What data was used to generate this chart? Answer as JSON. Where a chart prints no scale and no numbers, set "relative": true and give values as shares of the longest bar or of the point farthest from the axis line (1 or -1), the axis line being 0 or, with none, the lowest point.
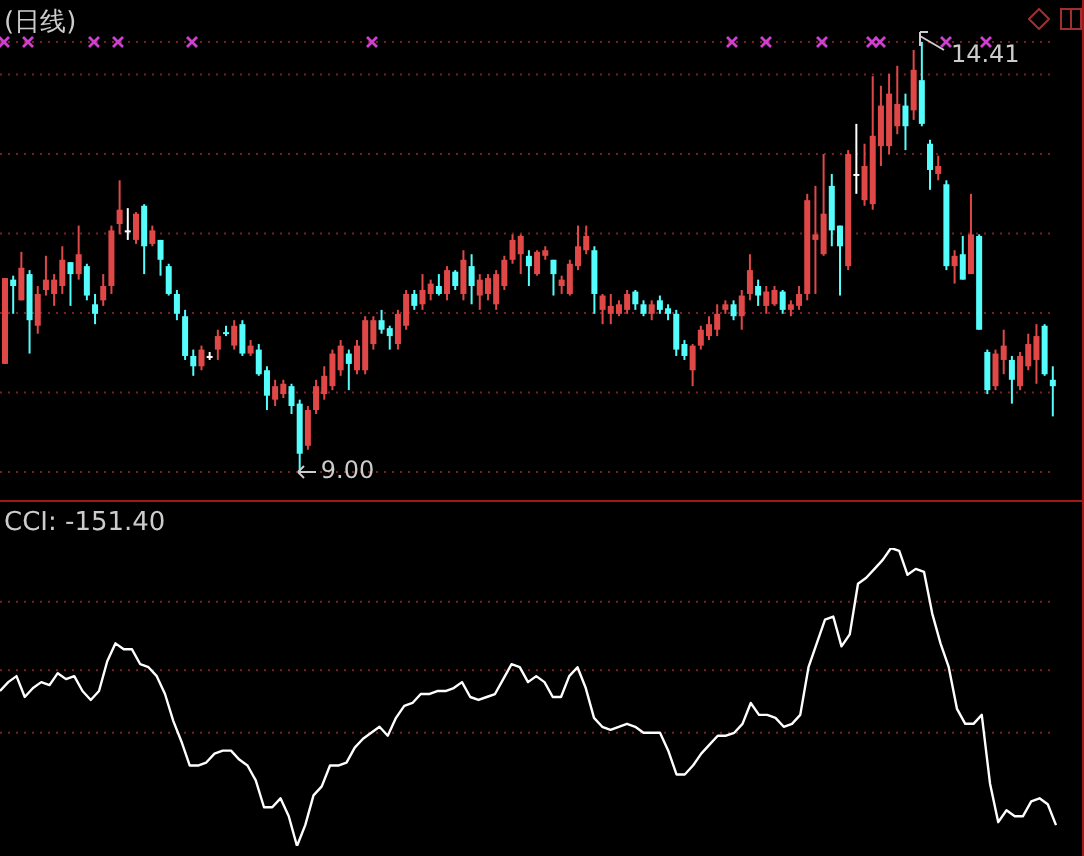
{
  "chart_data": [
    {
      "type": "candlestick",
      "title": "(日线)",
      "grid": "y",
      "categories": [
        null,
        null,
        null,
        null,
        null,
        null,
        null,
        null,
        null,
        null,
        null,
        null,
        null,
        null,
        null,
        null,
        null,
        null,
        null,
        null,
        null,
        null,
        null,
        null,
        null,
        null,
        null,
        null,
        null,
        null,
        null,
        null,
        null,
        null,
        null,
        null,
        null,
        null,
        null,
        null,
        null,
        null,
        null,
        null,
        null,
        null,
        null,
        null,
        null,
        null,
        null,
        null,
        null,
        null,
        null,
        null,
        null,
        null,
        null,
        null,
        null,
        null,
        null,
        null,
        null,
        null,
        null,
        null,
        null,
        null,
        null,
        null,
        null,
        null,
        null,
        null,
        null,
        null,
        null,
        null,
        null,
        null,
        null,
        null,
        null,
        null,
        null,
        null,
        null,
        null,
        null,
        null,
        null,
        null,
        null,
        null,
        null,
        null,
        null,
        null,
        null,
        null,
        null,
        null,
        null,
        null,
        null,
        null,
        null,
        null,
        null,
        null,
        null,
        null,
        null,
        null,
        null,
        null,
        null,
        null,
        null,
        null,
        null,
        null,
        null,
        null,
        null,
        null,
        null
      ],
      "yticks": [
        {
          "value": 9,
          "label": null
        },
        {
          "value": 10,
          "label": null
        },
        {
          "value": 11,
          "label": null
        },
        {
          "value": 12,
          "label": null
        },
        {
          "value": 13,
          "label": null
        },
        {
          "value": 14,
          "label": null
        }
      ],
      "annotations": [
        "14.41",
        "9.00"
      ],
      "ohlc": [
        [
          10.36,
          11.44,
          10.36,
          11.44
        ],
        [
          11.42,
          11.47,
          10.99,
          11.34
        ],
        [
          11.16,
          11.77,
          11.16,
          11.57
        ],
        [
          11.49,
          11.54,
          10.49,
          10.91
        ],
        [
          10.84,
          11.34,
          10.74,
          11.24
        ],
        [
          11.29,
          11.72,
          11.22,
          11.42
        ],
        [
          11.24,
          11.49,
          11.09,
          11.42
        ],
        [
          11.34,
          11.84,
          11.24,
          11.67
        ],
        [
          11.64,
          11.64,
          11.09,
          11.49
        ],
        [
          11.49,
          12.1,
          11.42,
          11.74
        ],
        [
          11.59,
          11.62,
          11.16,
          11.22
        ],
        [
          11.11,
          11.24,
          10.86,
          10.99
        ],
        [
          11.16,
          11.49,
          11.09,
          11.34
        ],
        [
          11.34,
          12.1,
          11.24,
          12.04
        ],
        [
          12.12,
          12.67,
          11.99,
          12.3
        ],
        [
          12.04,
          12.32,
          11.92,
          12.04
        ],
        [
          11.92,
          12.27,
          11.87,
          12.25
        ],
        [
          12.35,
          12.37,
          11.49,
          11.84
        ],
        [
          11.87,
          12.1,
          11.84,
          12.04
        ],
        [
          11.92,
          11.92,
          11.47,
          11.67
        ],
        [
          11.59,
          11.62,
          11.22,
          11.24
        ],
        [
          11.24,
          11.29,
          10.91,
          10.99
        ],
        [
          10.96,
          11.04,
          10.41,
          10.46
        ],
        [
          10.46,
          10.54,
          10.21,
          10.33
        ],
        [
          10.33,
          10.59,
          10.28,
          10.54
        ],
        [
          10.46,
          10.51,
          10.41,
          10.46
        ],
        [
          10.54,
          10.79,
          10.41,
          10.71
        ],
        [
          10.76,
          10.84,
          10.71,
          10.74
        ],
        [
          10.59,
          10.91,
          10.54,
          10.84
        ],
        [
          10.86,
          10.91,
          10.46,
          10.49
        ],
        [
          10.49,
          10.66,
          10.46,
          10.59
        ],
        [
          10.54,
          10.61,
          10.21,
          10.23
        ],
        [
          10.28,
          10.33,
          9.78,
          9.96
        ],
        [
          9.91,
          10.16,
          9.83,
          10.08
        ],
        [
          9.98,
          10.16,
          9.93,
          10.11
        ],
        [
          10.08,
          10.11,
          9.73,
          9.83
        ],
        [
          9.86,
          9.91,
          9.0,
          9.23
        ],
        [
          9.33,
          9.83,
          9.28,
          9.78
        ],
        [
          9.78,
          10.16,
          9.73,
          10.08
        ],
        [
          9.98,
          10.33,
          9.91,
          10.21
        ],
        [
          10.08,
          10.54,
          10.03,
          10.49
        ],
        [
          10.28,
          10.66,
          10.21,
          10.59
        ],
        [
          10.49,
          10.54,
          10.03,
          10.36
        ],
        [
          10.28,
          10.66,
          10.23,
          10.59
        ],
        [
          10.28,
          10.96,
          10.23,
          10.91
        ],
        [
          10.61,
          10.96,
          10.54,
          10.91
        ],
        [
          10.91,
          11.04,
          10.74,
          10.79
        ],
        [
          10.81,
          10.84,
          10.54,
          10.71
        ],
        [
          10.61,
          11.04,
          10.54,
          10.99
        ],
        [
          10.84,
          11.29,
          10.79,
          11.24
        ],
        [
          11.24,
          11.29,
          11.04,
          11.09
        ],
        [
          11.11,
          11.49,
          11.04,
          11.29
        ],
        [
          11.24,
          11.42,
          11.16,
          11.37
        ],
        [
          11.34,
          11.49,
          11.22,
          11.24
        ],
        [
          11.24,
          11.59,
          11.16,
          11.54
        ],
        [
          11.52,
          11.54,
          11.29,
          11.34
        ],
        [
          11.24,
          11.79,
          11.16,
          11.67
        ],
        [
          11.59,
          11.74,
          11.11,
          11.34
        ],
        [
          11.22,
          11.49,
          11.04,
          11.42
        ],
        [
          11.24,
          11.49,
          11.16,
          11.44
        ],
        [
          11.11,
          11.54,
          11.04,
          11.49
        ],
        [
          11.34,
          11.72,
          11.29,
          11.67
        ],
        [
          11.67,
          11.99,
          11.62,
          11.92
        ],
        [
          11.74,
          11.99,
          11.49,
          11.97
        ],
        [
          11.72,
          11.79,
          11.34,
          11.59
        ],
        [
          11.49,
          11.79,
          11.47,
          11.77
        ],
        [
          11.72,
          11.84,
          11.67,
          11.79
        ],
        [
          11.67,
          11.67,
          11.22,
          11.49
        ],
        [
          11.34,
          11.47,
          11.24,
          11.42
        ],
        [
          11.24,
          11.67,
          11.22,
          11.62
        ],
        [
          11.59,
          12.1,
          11.54,
          11.84
        ],
        [
          11.79,
          12.1,
          11.74,
          11.97
        ],
        [
          11.79,
          11.84,
          10.99,
          11.24
        ],
        [
          11.04,
          11.24,
          10.86,
          11.22
        ],
        [
          10.99,
          11.24,
          10.86,
          11.09
        ],
        [
          10.99,
          11.16,
          10.96,
          11.11
        ],
        [
          11.04,
          11.29,
          10.99,
          11.24
        ],
        [
          11.27,
          11.29,
          11.04,
          11.11
        ],
        [
          11.11,
          11.16,
          10.96,
          10.99
        ],
        [
          10.99,
          11.16,
          10.91,
          11.11
        ],
        [
          11.16,
          11.22,
          10.99,
          11.04
        ],
        [
          11.06,
          11.11,
          10.91,
          10.99
        ],
        [
          10.99,
          11.04,
          10.46,
          10.54
        ],
        [
          10.61,
          10.66,
          10.41,
          10.46
        ],
        [
          10.28,
          10.61,
          10.08,
          10.59
        ],
        [
          10.59,
          10.84,
          10.54,
          10.79
        ],
        [
          10.71,
          10.96,
          10.66,
          10.86
        ],
        [
          10.79,
          11.11,
          10.71,
          10.99
        ],
        [
          11.04,
          11.16,
          10.99,
          11.11
        ],
        [
          11.11,
          11.16,
          10.91,
          10.96
        ],
        [
          10.96,
          11.29,
          10.79,
          11.22
        ],
        [
          11.24,
          11.74,
          11.16,
          11.54
        ],
        [
          11.34,
          11.42,
          11.09,
          11.22
        ],
        [
          11.09,
          11.34,
          10.99,
          11.27
        ],
        [
          11.11,
          11.34,
          11.09,
          11.29
        ],
        [
          11.27,
          11.29,
          10.99,
          11.04
        ],
        [
          11.04,
          11.16,
          10.96,
          11.11
        ],
        [
          11.09,
          11.34,
          11.04,
          11.24
        ],
        [
          11.24,
          12.5,
          11.16,
          12.42
        ],
        [
          11.92,
          12.6,
          11.24,
          11.99
        ],
        [
          11.74,
          13.0,
          11.72,
          12.25
        ],
        [
          12.6,
          12.75,
          11.84,
          12.04
        ],
        [
          12.1,
          12.1,
          11.22,
          11.84
        ],
        [
          11.59,
          13.05,
          11.54,
          13.0
        ],
        [
          12.75,
          13.38,
          12.5,
          12.75
        ],
        [
          12.42,
          13.13,
          12.35,
          12.85
        ],
        [
          12.37,
          13.98,
          12.3,
          13.23
        ],
        [
          13.1,
          13.86,
          12.85,
          13.61
        ],
        [
          13.1,
          14.01,
          13.0,
          13.76
        ],
        [
          13.35,
          14.11,
          13.25,
          13.63
        ],
        [
          13.61,
          13.76,
          13.05,
          13.35
        ],
        [
          13.55,
          14.31,
          13.43,
          14.06
        ],
        [
          13.93,
          14.41,
          13.35,
          13.38
        ],
        [
          13.13,
          13.18,
          12.55,
          12.8
        ],
        [
          12.75,
          12.98,
          12.67,
          12.85
        ],
        [
          12.62,
          12.67,
          11.54,
          11.59
        ],
        [
          11.59,
          11.79,
          11.37,
          11.72
        ],
        [
          11.74,
          11.97,
          11.42,
          11.42
        ],
        [
          11.49,
          12.5,
          11.49,
          11.99
        ],
        [
          11.97,
          11.99,
          10.79,
          10.79
        ],
        [
          10.51,
          10.54,
          9.98,
          10.03
        ],
        [
          10.08,
          10.54,
          10.03,
          10.49
        ],
        [
          10.41,
          10.79,
          10.23,
          10.59
        ],
        [
          10.41,
          10.46,
          9.86,
          10.16
        ],
        [
          10.08,
          10.51,
          10.03,
          10.46
        ],
        [
          10.33,
          10.74,
          10.28,
          10.61
        ],
        [
          10.41,
          10.86,
          10.11,
          10.71
        ],
        [
          10.84,
          10.86,
          10.21,
          10.23
        ],
        [
          10.16,
          10.33,
          9.7,
          10.08
        ]
      ],
      "colors": [
        "#e04848",
        "#54fcfc",
        "#e04848",
        "#54fcfc",
        "#e04848",
        "#e04848",
        "#e04848",
        "#e04848",
        "#54fcfc",
        "#e04848",
        "#54fcfc",
        "#54fcfc",
        "#e04848",
        "#e04848",
        "#e04848",
        "#ffffff",
        "#e04848",
        "#54fcfc",
        "#e04848",
        "#54fcfc",
        "#54fcfc",
        "#54fcfc",
        "#54fcfc",
        "#54fcfc",
        "#e04848",
        "#ffffff",
        "#e04848",
        "#54fcfc",
        "#e04848",
        "#54fcfc",
        "#e04848",
        "#54fcfc",
        "#54fcfc",
        "#e04848",
        "#e04848",
        "#54fcfc",
        "#54fcfc",
        "#e04848",
        "#e04848",
        "#e04848",
        "#e04848",
        "#e04848",
        "#54fcfc",
        "#e04848",
        "#e04848",
        "#e04848",
        "#54fcfc",
        "#54fcfc",
        "#e04848",
        "#e04848",
        "#54fcfc",
        "#e04848",
        "#e04848",
        "#54fcfc",
        "#e04848",
        "#54fcfc",
        "#e04848",
        "#54fcfc",
        "#e04848",
        "#e04848",
        "#e04848",
        "#e04848",
        "#e04848",
        "#e04848",
        "#54fcfc",
        "#e04848",
        "#e04848",
        "#54fcfc",
        "#e04848",
        "#e04848",
        "#e04848",
        "#e04848",
        "#54fcfc",
        "#e04848",
        "#e04848",
        "#e04848",
        "#e04848",
        "#54fcfc",
        "#54fcfc",
        "#e04848",
        "#54fcfc",
        "#54fcfc",
        "#54fcfc",
        "#54fcfc",
        "#e04848",
        "#e04848",
        "#e04848",
        "#e04848",
        "#e04848",
        "#54fcfc",
        "#e04848",
        "#e04848",
        "#54fcfc",
        "#e04848",
        "#e04848",
        "#54fcfc",
        "#e04848",
        "#e04848",
        "#e04848",
        "#e04848",
        "#e04848",
        "#54fcfc",
        "#54fcfc",
        "#e04848",
        "#ffffff",
        "#e04848",
        "#e04848",
        "#e04848",
        "#e04848",
        "#e04848",
        "#54fcfc",
        "#e04848",
        "#54fcfc",
        "#54fcfc",
        "#e04848",
        "#54fcfc",
        "#e04848",
        "#54fcfc",
        "#e04848",
        "#54fcfc",
        "#54fcfc",
        "#e04848",
        "#e04848",
        "#54fcfc",
        "#e04848",
        "#e04848",
        "#e04848",
        "#54fcfc",
        "#54fcfc"
      ]
    },
    {
      "type": "line",
      "title": "CCI: -151.40",
      "relative": true,
      "marker": "none",
      "color": "#ffffff",
      "categories": [
        null,
        null,
        null,
        null,
        null,
        null,
        null,
        null,
        null,
        null,
        null,
        null,
        null,
        null,
        null,
        null,
        null,
        null,
        null,
        null,
        null,
        null,
        null,
        null,
        null,
        null,
        null,
        null,
        null,
        null,
        null,
        null,
        null,
        null,
        null,
        null,
        null,
        null,
        null,
        null,
        null,
        null,
        null,
        null,
        null,
        null,
        null,
        null,
        null,
        null,
        null,
        null,
        null,
        null,
        null,
        null,
        null,
        null,
        null,
        null,
        null,
        null,
        null,
        null,
        null,
        null,
        null,
        null,
        null,
        null,
        null,
        null,
        null,
        null,
        null,
        null,
        null,
        null,
        null,
        null,
        null,
        null,
        null,
        null,
        null,
        null,
        null,
        null,
        null,
        null,
        null,
        null,
        null,
        null,
        null,
        null,
        null,
        null,
        null,
        null,
        null,
        null,
        null,
        null,
        null,
        null,
        null,
        null,
        null,
        null,
        null,
        null,
        null,
        null,
        null,
        null,
        null,
        null,
        null,
        null,
        null,
        null,
        null,
        null,
        null,
        null,
        null,
        null,
        null
      ],
      "values": [
        0.52,
        0.55,
        0.57,
        0.5,
        0.53,
        0.55,
        0.54,
        0.58,
        0.56,
        0.57,
        0.52,
        0.49,
        0.52,
        0.62,
        0.68,
        0.66,
        0.66,
        0.61,
        0.6,
        0.57,
        0.51,
        0.42,
        0.35,
        0.27,
        0.27,
        0.28,
        0.31,
        0.32,
        0.32,
        0.29,
        0.27,
        0.22,
        0.13,
        0.13,
        0.16,
        0.1,
        0,
        0.07,
        0.17,
        0.2,
        0.27,
        0.27,
        0.28,
        0.33,
        0.36,
        0.38,
        0.4,
        0.37,
        0.43,
        0.47,
        0.48,
        0.51,
        0.51,
        0.52,
        0.52,
        0.53,
        0.55,
        0.5,
        0.49,
        0.5,
        0.51,
        0.56,
        0.61,
        0.6,
        0.55,
        0.57,
        0.55,
        0.5,
        0.5,
        0.57,
        0.6,
        0.53,
        0.43,
        0.4,
        0.39,
        0.4,
        0.41,
        0.4,
        0.38,
        0.38,
        0.38,
        0.32,
        0.24,
        0.24,
        0.27,
        0.31,
        0.34,
        0.37,
        0.37,
        0.38,
        0.41,
        0.48,
        0.44,
        0.44,
        0.43,
        0.4,
        0.41,
        0.44,
        0.6,
        0.68,
        0.76,
        0.77,
        0.67,
        0.71,
        0.88,
        0.9,
        0.93,
        0.96,
        1,
        0.99,
        0.91,
        0.93,
        0.92,
        0.78,
        0.68,
        0.6,
        0.46,
        0.41,
        0.41,
        0.44,
        0.21,
        0.08,
        0.12,
        0.1,
        0.1,
        0.15,
        0.16,
        0.14,
        0.07
      ],
      "ref_lines": [
        {
          "axis": "y",
          "value": 0.82,
          "color": "#7a2020",
          "line_style": "dotted"
        },
        {
          "axis": "y",
          "value": 0.59,
          "color": "#7a2020",
          "line_style": "dotted"
        },
        {
          "axis": "y",
          "value": 0.38,
          "color": "#7a2020",
          "line_style": "dotted"
        }
      ]
    }
  ]
}
